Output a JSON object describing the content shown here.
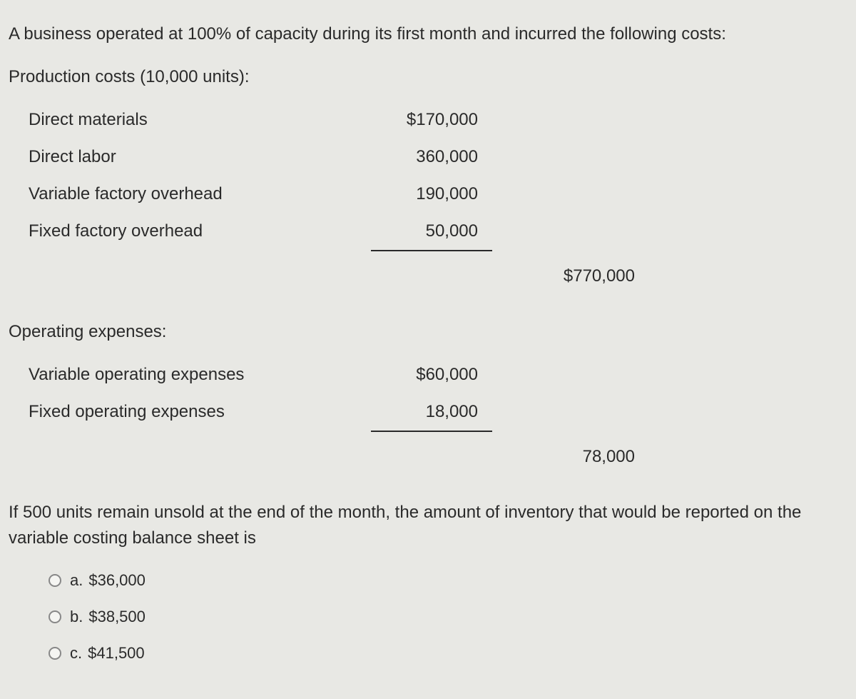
{
  "intro": "A business operated at 100% of capacity during its first month and incurred the following costs:",
  "production": {
    "header": "Production costs (10,000 units):",
    "items": [
      {
        "label": "Direct materials",
        "amount": "$170,000"
      },
      {
        "label": "Direct labor",
        "amount": "360,000"
      },
      {
        "label": "Variable factory overhead",
        "amount": "190,000"
      },
      {
        "label": "Fixed factory overhead",
        "amount": "50,000"
      }
    ],
    "subtotal": "$770,000"
  },
  "operating": {
    "header": "Operating expenses:",
    "items": [
      {
        "label": "Variable operating expenses",
        "amount": "$60,000"
      },
      {
        "label": "Fixed operating expenses",
        "amount": "18,000"
      }
    ],
    "subtotal": "78,000"
  },
  "followup": "If 500 units remain unsold at the end of the month, the amount of inventory that would be reported on the variable costing balance sheet is",
  "options": [
    {
      "letter": "a.",
      "text": "$36,000"
    },
    {
      "letter": "b.",
      "text": "$38,500"
    },
    {
      "letter": "c.",
      "text": "$41,500"
    }
  ],
  "colors": {
    "background": "#e8e8e4",
    "text": "#2a2a2a",
    "radio_border": "#888"
  },
  "typography": {
    "body_fontsize": 24,
    "option_fontsize": 22,
    "font_family": "Verdana, Geneva, sans-serif"
  }
}
